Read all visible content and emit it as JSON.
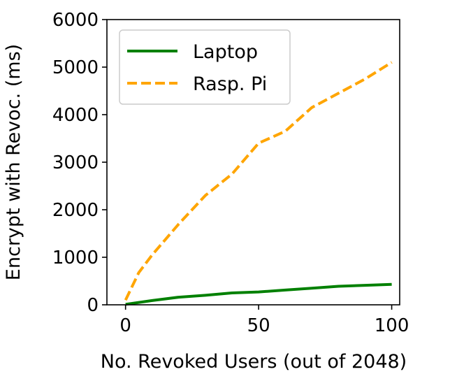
{
  "chart_data": {
    "type": "line",
    "xlabel": "No. Revoked Users (out of 2048)",
    "ylabel": "Encrypt with Revoc. (ms)",
    "xlim": [
      -7,
      103
    ],
    "ylim": [
      0,
      6000
    ],
    "xticks": [
      0,
      50,
      100
    ],
    "yticks": [
      0,
      1000,
      2000,
      3000,
      4000,
      5000,
      6000
    ],
    "grid": false,
    "legend_position": "top-left",
    "series": [
      {
        "name": "Laptop",
        "color": "#008000",
        "style": "solid",
        "x": [
          0,
          5,
          10,
          20,
          30,
          40,
          50,
          60,
          70,
          80,
          90,
          100
        ],
        "y": [
          10,
          50,
          90,
          160,
          200,
          250,
          270,
          310,
          350,
          390,
          410,
          430
        ]
      },
      {
        "name": "Rasp. Pi",
        "color": "#ffa500",
        "style": "dashed",
        "x": [
          0,
          5,
          10,
          20,
          30,
          40,
          50,
          60,
          70,
          80,
          90,
          100
        ],
        "y": [
          100,
          680,
          1050,
          1700,
          2300,
          2750,
          3400,
          3650,
          4150,
          4450,
          4750,
          5100
        ]
      }
    ]
  }
}
